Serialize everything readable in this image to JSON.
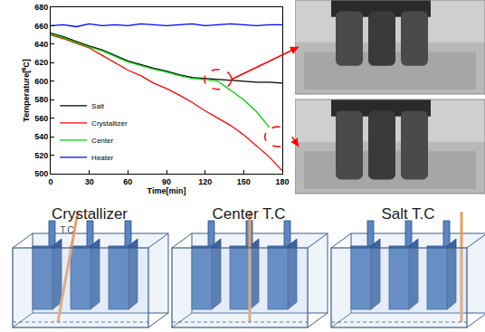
{
  "chart_data": {
    "type": "line",
    "x": [
      0,
      10,
      20,
      30,
      40,
      50,
      60,
      70,
      80,
      90,
      100,
      110,
      120,
      130,
      140,
      150,
      160,
      170,
      180
    ],
    "series": [
      {
        "name": "Salt",
        "color": "#000000",
        "values": [
          652,
          648,
          643,
          638,
          634,
          628,
          622,
          618,
          614,
          611,
          607,
          604,
          603,
          602,
          601,
          600,
          599,
          599,
          598
        ]
      },
      {
        "name": "Crystallizer",
        "color": "#ff0000",
        "values": [
          650,
          646,
          641,
          636,
          628,
          620,
          612,
          606,
          598,
          592,
          585,
          577,
          568,
          560,
          552,
          542,
          530,
          518,
          503
        ]
      },
      {
        "name": "Center",
        "color": "#00cc00",
        "values": [
          651,
          647,
          642,
          637,
          633,
          627,
          621,
          617,
          613,
          610,
          606,
          603,
          602,
          600,
          590,
          580,
          567,
          550,
          null
        ]
      },
      {
        "name": "Heater",
        "color": "#0000ff",
        "values": [
          660,
          661,
          659,
          662,
          660,
          661,
          660,
          662,
          661,
          660,
          661,
          662,
          660,
          661,
          662,
          661,
          660,
          661,
          661
        ]
      }
    ],
    "x_label": "Time[min]",
    "y_label": "Temperature[⁰C]",
    "xlim": [
      0,
      180
    ],
    "xticks": [
      0,
      30,
      60,
      90,
      120,
      150,
      180
    ],
    "ylim": [
      500,
      680
    ],
    "yticks": [
      500,
      520,
      540,
      560,
      580,
      600,
      620,
      640,
      660,
      680
    ],
    "grid": false,
    "legend": "lower left",
    "line_style": "solid",
    "highlights": [
      {
        "x": 130,
        "y": 602
      },
      {
        "x": 177,
        "y": 540
      }
    ]
  },
  "diagram": {
    "panels": [
      {
        "label": "Crystallizer",
        "sublabel": "T.C"
      },
      {
        "label": "Center T.C"
      },
      {
        "label": "Salt T.C"
      }
    ]
  }
}
